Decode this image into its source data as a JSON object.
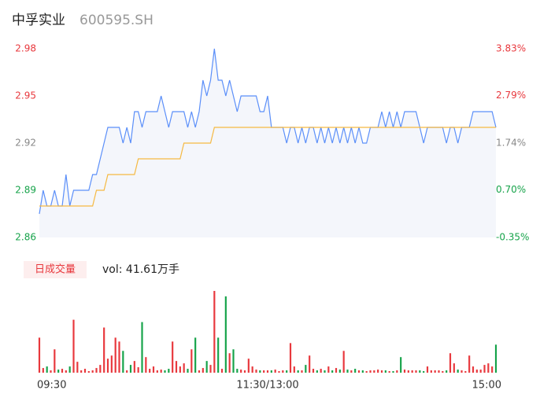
{
  "chart_data": [
    {
      "type": "line",
      "title": "中孚实业",
      "subtitle": "600595.SH",
      "series": [
        {
          "name": "price",
          "color": "#5b8ff9",
          "values": [
            2.875,
            2.89,
            2.88,
            2.88,
            2.89,
            2.88,
            2.88,
            2.9,
            2.88,
            2.89,
            2.89,
            2.89,
            2.89,
            2.89,
            2.9,
            2.9,
            2.91,
            2.92,
            2.93,
            2.93,
            2.93,
            2.93,
            2.92,
            2.93,
            2.92,
            2.94,
            2.94,
            2.93,
            2.94,
            2.94,
            2.94,
            2.94,
            2.95,
            2.94,
            2.93,
            2.94,
            2.94,
            2.94,
            2.94,
            2.93,
            2.94,
            2.93,
            2.94,
            2.96,
            2.95,
            2.96,
            2.98,
            2.96,
            2.96,
            2.95,
            2.96,
            2.95,
            2.94,
            2.95,
            2.95,
            2.95,
            2.95,
            2.95,
            2.94,
            2.94,
            2.95,
            2.93,
            2.93,
            2.93,
            2.93,
            2.92,
            2.93,
            2.93,
            2.92,
            2.93,
            2.92,
            2.93,
            2.93,
            2.92,
            2.93,
            2.92,
            2.93,
            2.92,
            2.93,
            2.92,
            2.93,
            2.92,
            2.93,
            2.92,
            2.93,
            2.92,
            2.92,
            2.93,
            2.93,
            2.93,
            2.94,
            2.93,
            2.94,
            2.93,
            2.94,
            2.93,
            2.94,
            2.94,
            2.94,
            2.94,
            2.93,
            2.92,
            2.93,
            2.93,
            2.93,
            2.93,
            2.93,
            2.92,
            2.93,
            2.93,
            2.92,
            2.93,
            2.93,
            2.93,
            2.94,
            2.94,
            2.94,
            2.94,
            2.94,
            2.94,
            2.93
          ]
        },
        {
          "name": "average",
          "color": "#f5b942",
          "values": [
            2.88,
            2.88,
            2.88,
            2.88,
            2.88,
            2.88,
            2.88,
            2.88,
            2.88,
            2.88,
            2.88,
            2.88,
            2.88,
            2.88,
            2.88,
            2.89,
            2.89,
            2.89,
            2.9,
            2.9,
            2.9,
            2.9,
            2.9,
            2.9,
            2.9,
            2.9,
            2.91,
            2.91,
            2.91,
            2.91,
            2.91,
            2.91,
            2.91,
            2.91,
            2.91,
            2.91,
            2.91,
            2.91,
            2.92,
            2.92,
            2.92,
            2.92,
            2.92,
            2.92,
            2.92,
            2.92,
            2.93,
            2.93,
            2.93,
            2.93,
            2.93,
            2.93,
            2.93,
            2.93,
            2.93,
            2.93,
            2.93,
            2.93,
            2.93,
            2.93,
            2.93,
            2.93,
            2.93,
            2.93,
            2.93,
            2.93,
            2.93,
            2.93,
            2.93,
            2.93,
            2.93,
            2.93,
            2.93,
            2.93,
            2.93,
            2.93,
            2.93,
            2.93,
            2.93,
            2.93,
            2.93,
            2.93,
            2.93,
            2.93,
            2.93,
            2.93,
            2.93,
            2.93,
            2.93,
            2.93,
            2.93,
            2.93,
            2.93,
            2.93,
            2.93,
            2.93,
            2.93,
            2.93,
            2.93,
            2.93,
            2.93,
            2.93,
            2.93,
            2.93,
            2.93,
            2.93,
            2.93,
            2.93,
            2.93,
            2.93,
            2.93,
            2.93,
            2.93,
            2.93,
            2.93,
            2.93,
            2.93,
            2.93,
            2.93,
            2.93,
            2.93
          ]
        }
      ],
      "area_color": "#f4f6fb",
      "ylim": [
        2.86,
        2.98
      ],
      "yticks": [
        2.98,
        2.95,
        2.92,
        2.89,
        2.86
      ],
      "ytick_colors": [
        "#e8383d",
        "#e8383d",
        "#888888",
        "#16a34a",
        "#16a34a"
      ],
      "y2lim": [
        -0.35,
        3.83
      ],
      "y2ticks": [
        {
          "value": 3.83,
          "label": "3.83%"
        },
        {
          "value": 2.79,
          "label": "2.79%"
        },
        {
          "value": 1.74,
          "label": "1.74%"
        },
        {
          "value": 0.7,
          "label": "0.70%"
        },
        {
          "value": -0.35,
          "label": "-0.35%"
        }
      ],
      "y2tick_colors": [
        "#e8383d",
        "#e8383d",
        "#888888",
        "#16a34a",
        "#16a34a"
      ]
    },
    {
      "type": "bar",
      "title": "日成交量",
      "subtitle": "vol: 41.61万手",
      "up_color": "#e8383d",
      "down_color": "#16a34a",
      "values": [
        45,
        6,
        8,
        3,
        30,
        4,
        5,
        3,
        8,
        68,
        14,
        3,
        5,
        2,
        3,
        6,
        10,
        58,
        18,
        22,
        45,
        40,
        28,
        3,
        10,
        15,
        7,
        65,
        20,
        5,
        8,
        3,
        4,
        3,
        5,
        40,
        15,
        8,
        12,
        5,
        30,
        45,
        3,
        6,
        15,
        10,
        105,
        45,
        5,
        98,
        25,
        30,
        5,
        4,
        3,
        18,
        8,
        4,
        3,
        3,
        3,
        3,
        4,
        2,
        3,
        3,
        38,
        8,
        3,
        3,
        10,
        22,
        5,
        3,
        5,
        3,
        8,
        3,
        6,
        4,
        28,
        4,
        3,
        5,
        3,
        3,
        2,
        3,
        3,
        4,
        3,
        3,
        2,
        2,
        3,
        20,
        4,
        3,
        3,
        3,
        3,
        2,
        8,
        3,
        3,
        3,
        2,
        3,
        25,
        12,
        4,
        3,
        2,
        22,
        8,
        4,
        4,
        10,
        12,
        8,
        36
      ],
      "xticks": [
        {
          "value": 0,
          "label": "09:30"
        },
        {
          "value": 60,
          "label": "11:30/13:00"
        },
        {
          "value": 120,
          "label": "15:00"
        }
      ]
    }
  ]
}
